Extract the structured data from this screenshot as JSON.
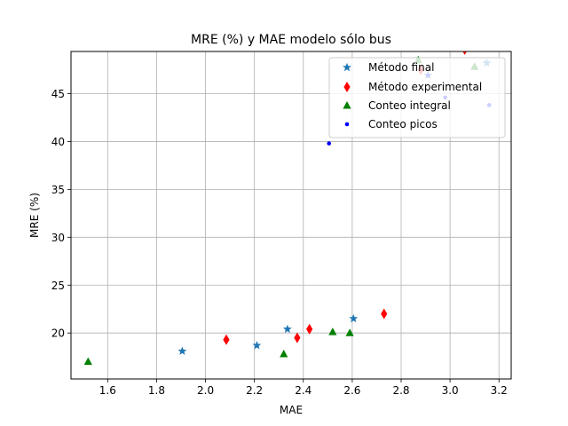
{
  "chart_data": {
    "type": "scatter",
    "title": "MRE (%) y MAE modelo sólo bus",
    "xlabel": "MAE",
    "ylabel": "MRE (%)",
    "xlim": [
      1.45,
      3.25
    ],
    "ylim": [
      15.2,
      49.4
    ],
    "xticks": [
      1.6,
      1.8,
      2.0,
      2.2,
      2.4,
      2.6,
      2.8,
      3.0,
      3.2
    ],
    "xtick_labels": [
      "1.6",
      "1.8",
      "2.0",
      "2.2",
      "2.4",
      "2.6",
      "2.8",
      "3.0",
      "3.2"
    ],
    "yticks": [
      20,
      25,
      30,
      35,
      40,
      45
    ],
    "ytick_labels": [
      "20",
      "25",
      "30",
      "35",
      "40",
      "45"
    ],
    "grid": true,
    "legend_position": "top-right",
    "series": [
      {
        "name": "Método final",
        "marker": "star",
        "color": "#1f77b4",
        "points": [
          [
            1.905,
            18.1
          ],
          [
            2.21,
            18.7
          ],
          [
            2.335,
            20.4
          ],
          [
            2.605,
            21.5
          ],
          [
            2.91,
            46.9
          ],
          [
            3.15,
            48.2
          ]
        ]
      },
      {
        "name": "Método experimental",
        "marker": "thin_diamond",
        "color": "#ff0000",
        "points": [
          [
            2.085,
            19.3
          ],
          [
            2.375,
            19.5
          ],
          [
            2.425,
            20.4
          ],
          [
            2.73,
            22.0
          ],
          [
            2.88,
            47.5
          ],
          [
            3.06,
            49.6
          ]
        ]
      },
      {
        "name": "Conteo integral",
        "marker": "triangle",
        "color": "#008000",
        "points": [
          [
            1.52,
            17.0
          ],
          [
            2.32,
            17.8
          ],
          [
            2.52,
            20.1
          ],
          [
            2.59,
            20.0
          ],
          [
            2.87,
            48.5
          ],
          [
            3.1,
            47.8
          ]
        ]
      },
      {
        "name": "Conteo picos",
        "marker": "point",
        "color": "#0000ff",
        "points": [
          [
            2.505,
            39.8
          ],
          [
            2.91,
            46.9
          ],
          [
            3.16,
            43.8
          ],
          [
            2.98,
            44.6
          ]
        ]
      }
    ]
  }
}
